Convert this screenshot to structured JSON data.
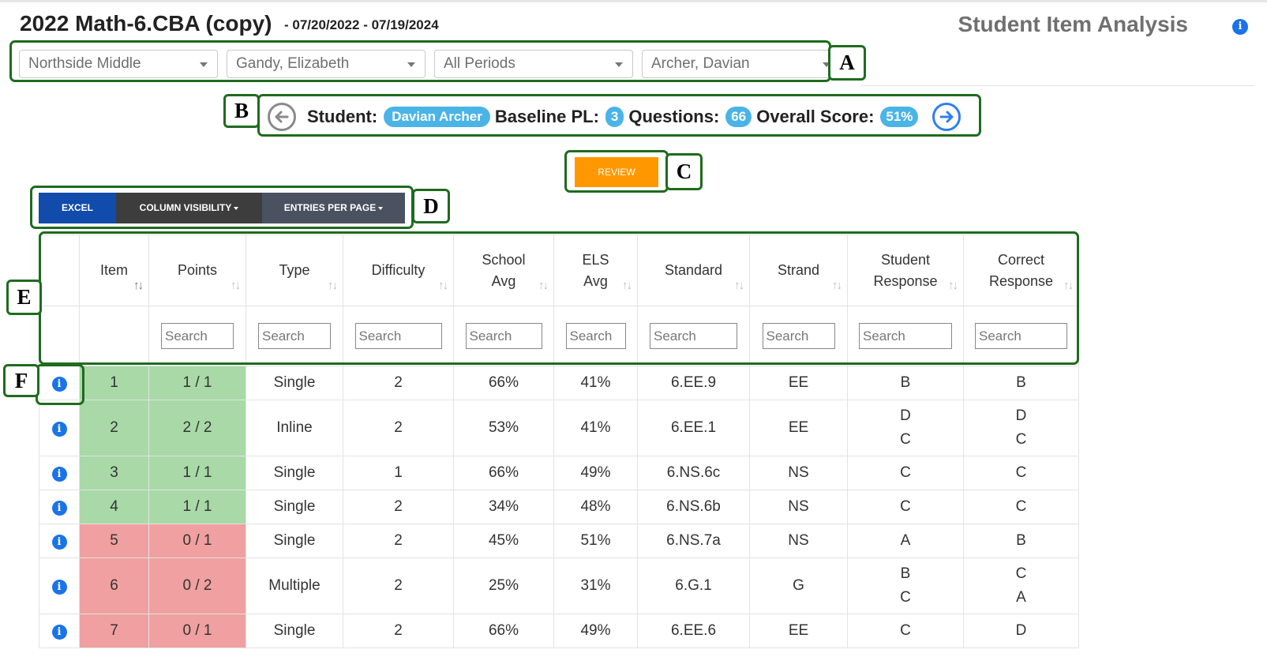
{
  "header": {
    "title": "2022 Math-6.CBA (copy)",
    "date_range": "- 07/20/2022 - 07/19/2024",
    "section_title": "Student Item Analysis",
    "info_icon": "i"
  },
  "filters": [
    {
      "value": "Northside Middle"
    },
    {
      "value": "Gandy, Elizabeth"
    },
    {
      "value": "All Periods"
    },
    {
      "value": "Archer, Davian"
    }
  ],
  "student_bar": {
    "student_label": "Student:",
    "student_name": "Davian Archer",
    "baseline_label": "Baseline PL:",
    "baseline_value": "3",
    "questions_label": "Questions:",
    "questions_value": "66",
    "score_label": "Overall Score:",
    "score_value": "51%"
  },
  "review_label": "REVIEW",
  "toolbar": {
    "excel": "EXCEL",
    "column_visibility": "COLUMN VISIBILITY",
    "entries_per_page": "ENTRIES PER PAGE"
  },
  "callouts": {
    "a": "A",
    "b": "B",
    "c": "C",
    "d": "D",
    "e": "E",
    "f": "F"
  },
  "table": {
    "columns": [
      {
        "line1": "",
        "line2": ""
      },
      {
        "line1": "Item",
        "line2": ""
      },
      {
        "line1": "Points",
        "line2": ""
      },
      {
        "line1": "Type",
        "line2": ""
      },
      {
        "line1": "Difficulty",
        "line2": ""
      },
      {
        "line1": "School",
        "line2": "Avg"
      },
      {
        "line1": "ELS",
        "line2": "Avg"
      },
      {
        "line1": "Standard",
        "line2": ""
      },
      {
        "line1": "Strand",
        "line2": ""
      },
      {
        "line1": "Student",
        "line2": "Response"
      },
      {
        "line1": "Correct",
        "line2": "Response"
      }
    ],
    "search_placeholder": "Search",
    "rows": [
      {
        "item": "1",
        "points": "1 / 1",
        "type": "Single",
        "difficulty": "2",
        "school_avg": "66%",
        "els_avg": "41%",
        "standard": "6.EE.9",
        "strand": "EE",
        "student_response": [
          "B"
        ],
        "correct_response": [
          "B"
        ],
        "status": "correct"
      },
      {
        "item": "2",
        "points": "2 / 2",
        "type": "Inline",
        "difficulty": "2",
        "school_avg": "53%",
        "els_avg": "41%",
        "standard": "6.EE.1",
        "strand": "EE",
        "student_response": [
          "D",
          "C"
        ],
        "correct_response": [
          "D",
          "C"
        ],
        "status": "correct"
      },
      {
        "item": "3",
        "points": "1 / 1",
        "type": "Single",
        "difficulty": "1",
        "school_avg": "66%",
        "els_avg": "49%",
        "standard": "6.NS.6c",
        "strand": "NS",
        "student_response": [
          "C"
        ],
        "correct_response": [
          "C"
        ],
        "status": "correct"
      },
      {
        "item": "4",
        "points": "1 / 1",
        "type": "Single",
        "difficulty": "2",
        "school_avg": "34%",
        "els_avg": "48%",
        "standard": "6.NS.6b",
        "strand": "NS",
        "student_response": [
          "C"
        ],
        "correct_response": [
          "C"
        ],
        "status": "correct"
      },
      {
        "item": "5",
        "points": "0 / 1",
        "type": "Single",
        "difficulty": "2",
        "school_avg": "45%",
        "els_avg": "51%",
        "standard": "6.NS.7a",
        "strand": "NS",
        "student_response": [
          "A"
        ],
        "correct_response": [
          "B"
        ],
        "status": "incorrect"
      },
      {
        "item": "6",
        "points": "0 / 2",
        "type": "Multiple",
        "difficulty": "2",
        "school_avg": "25%",
        "els_avg": "31%",
        "standard": "6.G.1",
        "strand": "G",
        "student_response": [
          "B",
          "C"
        ],
        "correct_response": [
          "C",
          "A"
        ],
        "status": "incorrect"
      },
      {
        "item": "7",
        "points": "0 / 1",
        "type": "Single",
        "difficulty": "2",
        "school_avg": "66%",
        "els_avg": "49%",
        "standard": "6.EE.6",
        "strand": "EE",
        "student_response": [
          "C"
        ],
        "correct_response": [
          "D"
        ],
        "status": "incorrect"
      }
    ]
  },
  "colors": {
    "correct": "#a8d9a7",
    "incorrect": "#f0a0a0",
    "review": "#ff9800",
    "pill": "#4bb4e6",
    "excel": "#114cad",
    "callout_border": "#1f6b1f"
  }
}
